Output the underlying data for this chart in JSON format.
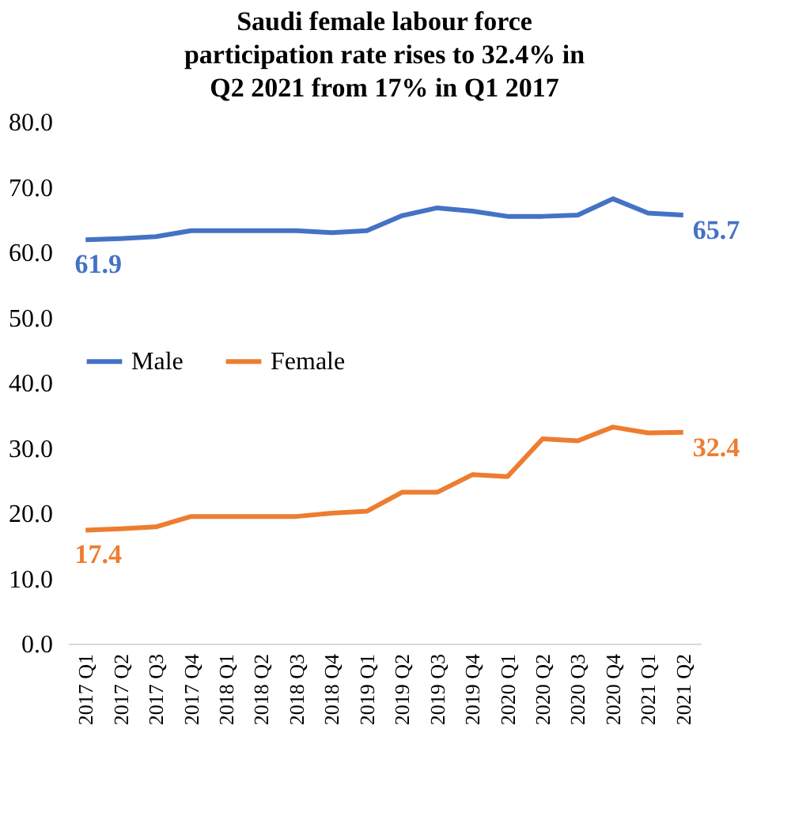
{
  "chart_data": {
    "type": "line",
    "title": "Saudi female labour force participation rate rises to 32.4% in Q2 2021 from 17% in Q1 2017",
    "categories": [
      "2017 Q1",
      "2017 Q2",
      "2017 Q3",
      "2017 Q4",
      "2018 Q1",
      "2018 Q2",
      "2018 Q3",
      "2018 Q4",
      "2019 Q1",
      "2019 Q2",
      "2019 Q3",
      "2019 Q4",
      "2020 Q1",
      "2020 Q2",
      "2020 Q3",
      "2020 Q4",
      "2021 Q1",
      "2021 Q2"
    ],
    "series": [
      {
        "name": "Male",
        "color": "#4472c4",
        "values": [
          61.9,
          62.1,
          62.4,
          63.3,
          63.3,
          63.3,
          63.3,
          63.0,
          63.3,
          65.6,
          66.8,
          66.3,
          65.5,
          65.5,
          65.7,
          68.2,
          66.0,
          65.7
        ],
        "value_labels": [
          "61.9",
          null,
          null,
          null,
          null,
          null,
          null,
          null,
          null,
          null,
          null,
          null,
          null,
          null,
          null,
          null,
          null,
          "65.7"
        ]
      },
      {
        "name": "Female",
        "color": "#ed7d31",
        "values": [
          17.4,
          17.6,
          17.9,
          19.5,
          19.5,
          19.5,
          19.5,
          20.0,
          20.3,
          23.2,
          23.2,
          25.9,
          25.6,
          31.4,
          31.1,
          33.2,
          32.3,
          32.4
        ],
        "value_labels": [
          "17.4",
          null,
          null,
          null,
          null,
          null,
          null,
          null,
          null,
          null,
          null,
          null,
          null,
          null,
          null,
          null,
          null,
          "32.4"
        ]
      }
    ],
    "ylim": [
      0,
      80
    ],
    "yticks": [
      {
        "value": 0,
        "label": "0.0"
      },
      {
        "value": 10,
        "label": "10.0"
      },
      {
        "value": 20,
        "label": "20.0"
      },
      {
        "value": 30,
        "label": "30.0"
      },
      {
        "value": 40,
        "label": "40.0"
      },
      {
        "value": 50,
        "label": "50.0"
      },
      {
        "value": 60,
        "label": "60.0"
      },
      {
        "value": 70,
        "label": "70.0"
      },
      {
        "value": 80,
        "label": "80.0"
      }
    ],
    "grid": false,
    "legend": "left",
    "marker": "none",
    "line_style": "solid"
  }
}
